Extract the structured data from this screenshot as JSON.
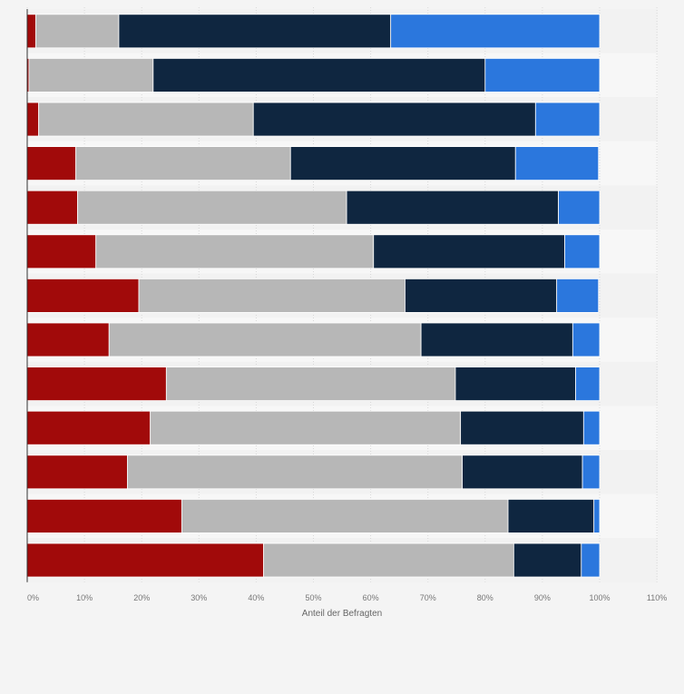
{
  "chart_data": {
    "type": "bar",
    "orientation": "horizontal",
    "stacked": true,
    "xlabel": "Anteil der Befragten",
    "x_ticks": [
      "0%",
      "10%",
      "20%",
      "30%",
      "40%",
      "50%",
      "60%",
      "70%",
      "80%",
      "90%",
      "100%",
      "110%"
    ],
    "xlim": [
      0,
      110
    ],
    "grid": true,
    "legend": "none",
    "colors": [
      "#a10a0a",
      "#b7b7b7",
      "#0f2640",
      "#2b77dd"
    ],
    "series": [
      {
        "values": [
          1.5,
          0.3,
          2,
          8.5,
          8.8,
          12,
          19.5,
          14.3,
          24.3,
          21.5,
          17.5,
          27,
          41.3
        ]
      },
      {
        "values": [
          14.5,
          21.7,
          37.5,
          37.5,
          47,
          48.5,
          46.5,
          54.5,
          50.5,
          54.2,
          58.5,
          57,
          43.7
        ]
      },
      {
        "values": [
          47.5,
          58,
          49.3,
          39.3,
          37,
          33.4,
          26.5,
          26.5,
          21,
          21.5,
          21,
          15,
          11.8
        ]
      },
      {
        "values": [
          36.5,
          20,
          11.2,
          14.5,
          7.2,
          6.1,
          7.3,
          4.7,
          4.2,
          2.8,
          3,
          1,
          3.2
        ]
      }
    ]
  }
}
